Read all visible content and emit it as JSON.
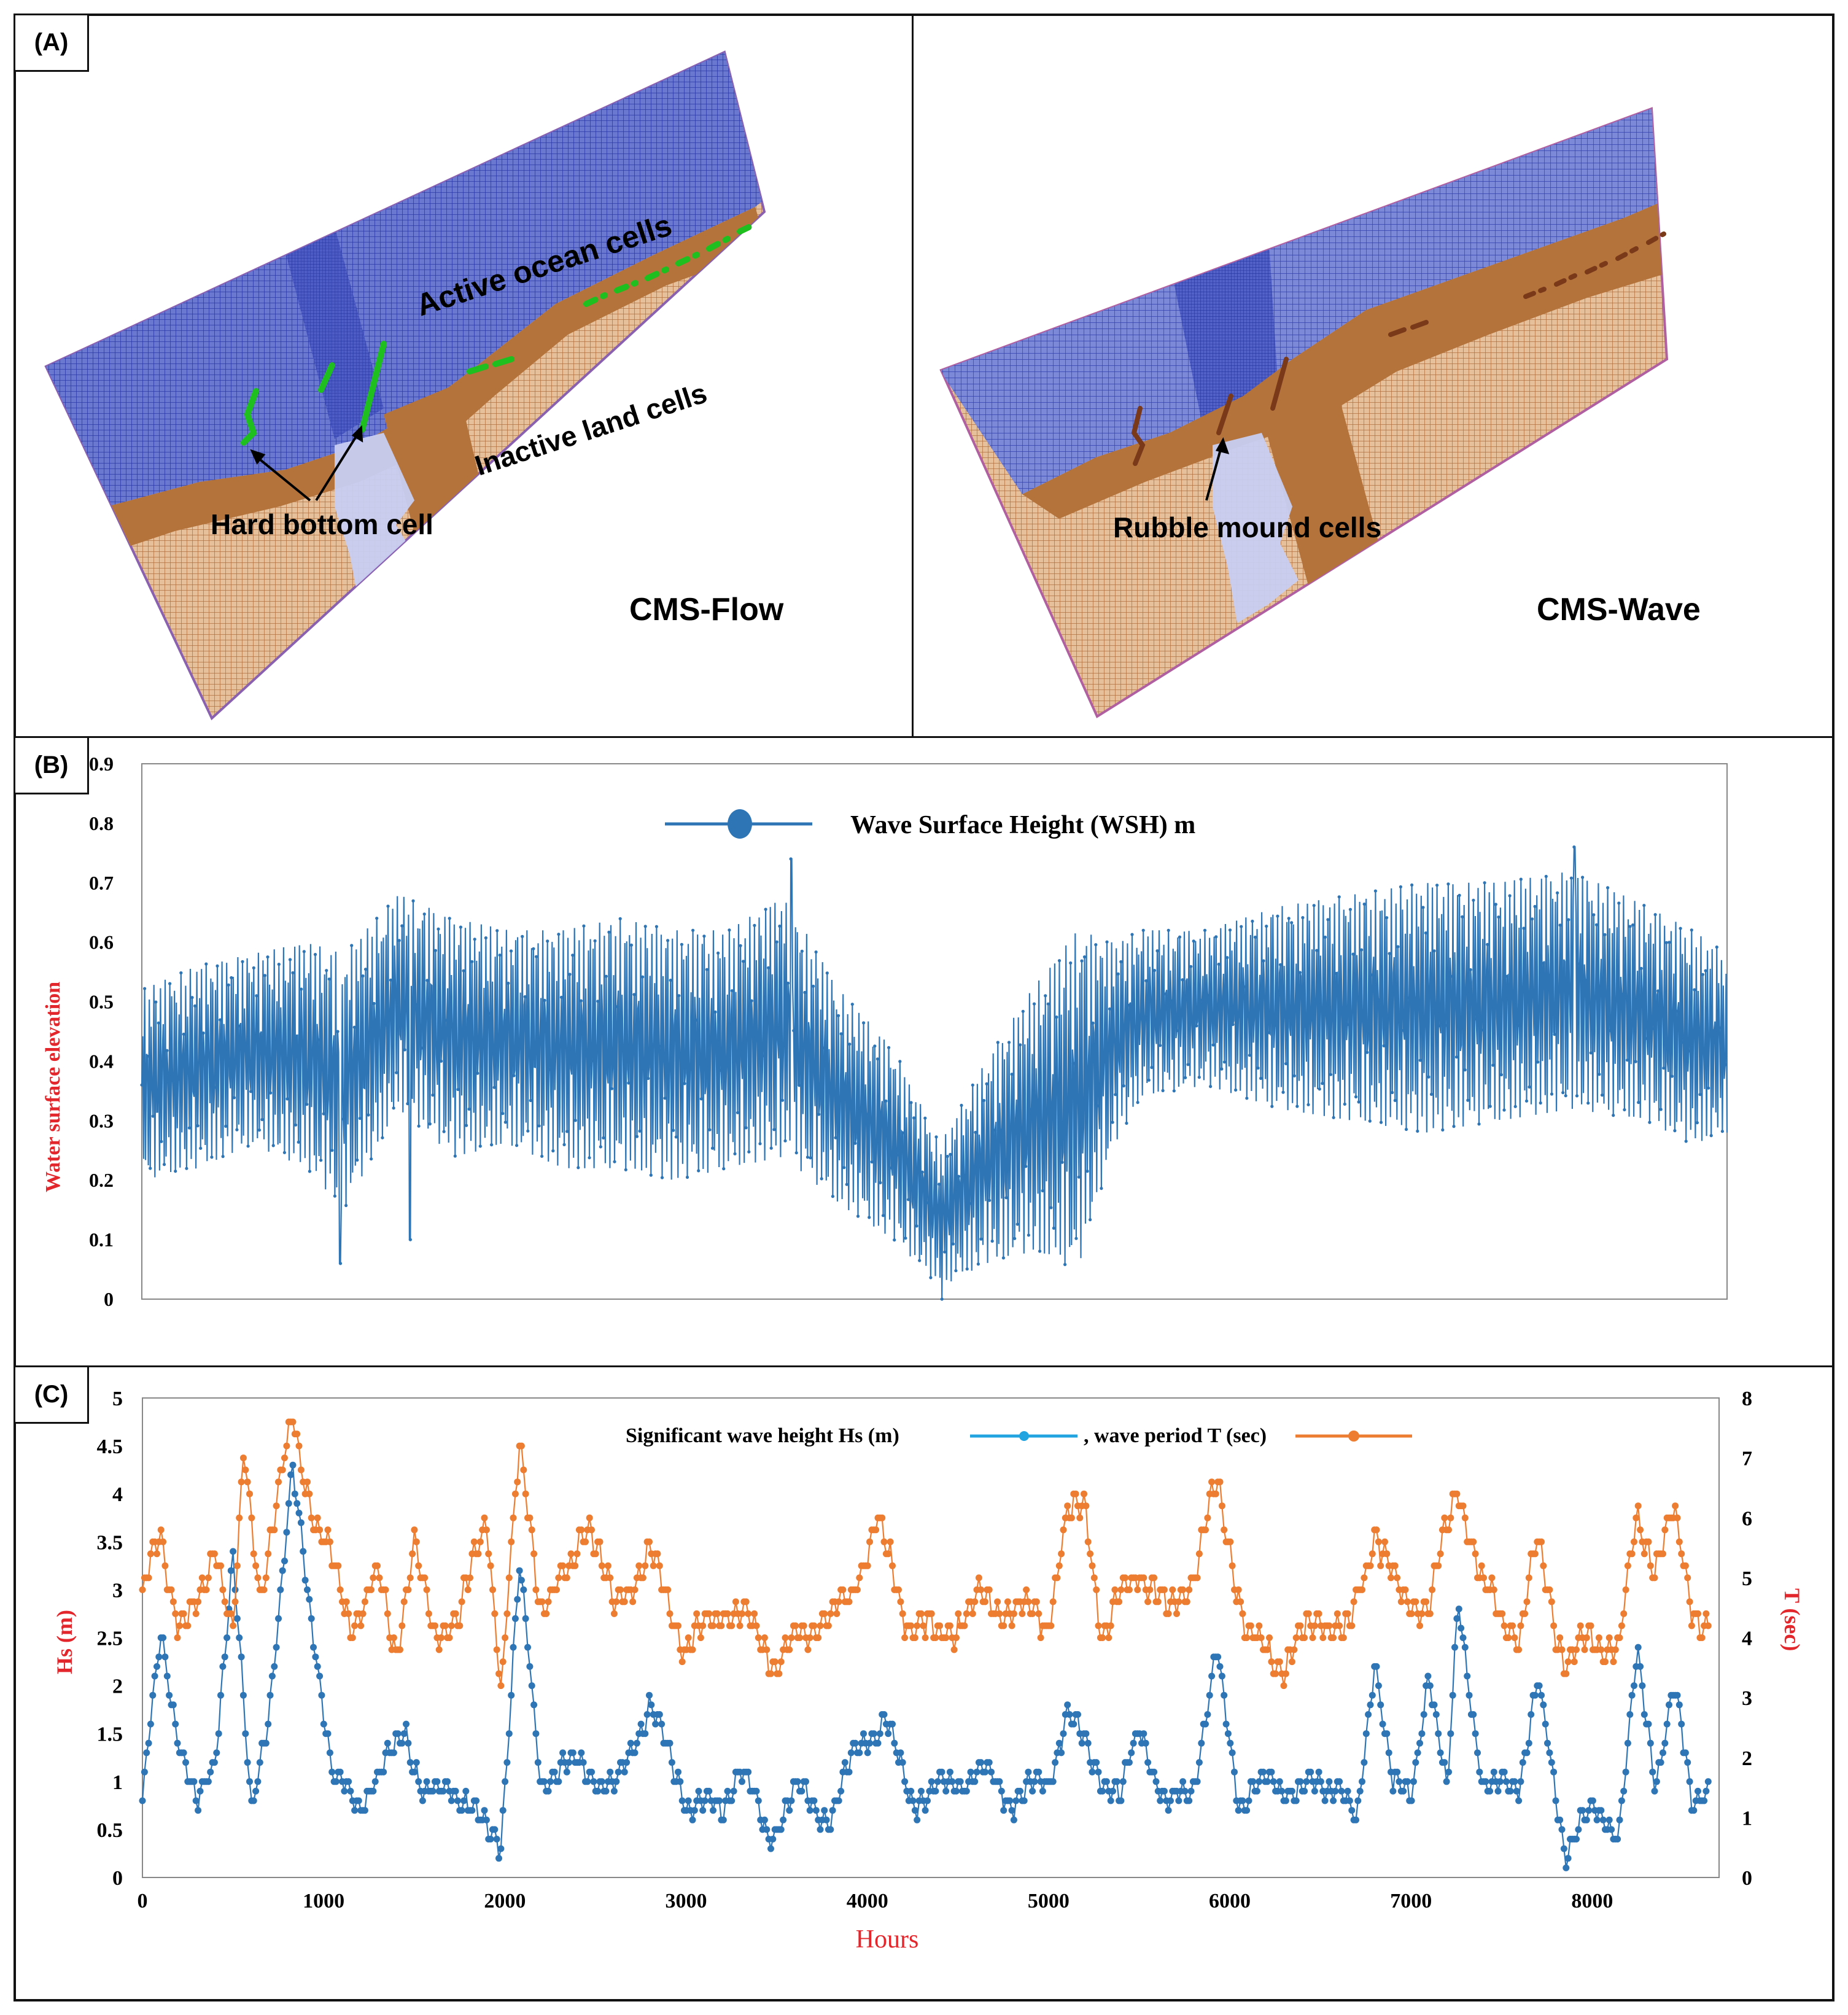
{
  "panel_a": {
    "label": "(A)",
    "left_map": {
      "title": "CMS-Flow",
      "labels": {
        "ocean": "Active ocean cells",
        "land": "Inactive land cells",
        "hard_bottom": "Hard bottom cell"
      }
    },
    "right_map": {
      "title": "CMS-Wave",
      "labels": {
        "rubble": "Rubble mound cells"
      }
    },
    "colors": {
      "ocean": "#3b4fb8",
      "land": "#b0703a",
      "land_mesh": "#d8a878",
      "hard_bottom": "#19c319",
      "rubble": "#7a3a1a"
    }
  },
  "panel_b": {
    "label": "(B)",
    "chart_data": {
      "type": "line",
      "legend": "Wave Surface Height (WSH) m",
      "ylabel": "Water surface elevation",
      "ylim": [
        0,
        0.9
      ],
      "yticks": [
        "0",
        "0.1",
        "0.2",
        "0.3",
        "0.4",
        "0.5",
        "0.6",
        "0.7",
        "0.8",
        "0.9"
      ],
      "xlim": [
        0,
        8640
      ],
      "color": "#2e75b6",
      "envelope": [
        {
          "x": 0,
          "lo": 0.2,
          "hi": 0.52
        },
        {
          "x": 300,
          "lo": 0.22,
          "hi": 0.56
        },
        {
          "x": 600,
          "lo": 0.26,
          "hi": 0.58
        },
        {
          "x": 900,
          "lo": 0.22,
          "hi": 0.6
        },
        {
          "x": 1100,
          "lo": 0.15,
          "hi": 0.58
        },
        {
          "x": 1400,
          "lo": 0.32,
          "hi": 0.68
        },
        {
          "x": 1700,
          "lo": 0.24,
          "hi": 0.64
        },
        {
          "x": 2000,
          "lo": 0.26,
          "hi": 0.62
        },
        {
          "x": 2300,
          "lo": 0.22,
          "hi": 0.62
        },
        {
          "x": 2600,
          "lo": 0.22,
          "hi": 0.64
        },
        {
          "x": 2900,
          "lo": 0.2,
          "hi": 0.62
        },
        {
          "x": 3200,
          "lo": 0.22,
          "hi": 0.62
        },
        {
          "x": 3500,
          "lo": 0.24,
          "hi": 0.68
        },
        {
          "x": 3800,
          "lo": 0.16,
          "hi": 0.52
        },
        {
          "x": 4100,
          "lo": 0.1,
          "hi": 0.42
        },
        {
          "x": 4350,
          "lo": 0.02,
          "hi": 0.26
        },
        {
          "x": 4600,
          "lo": 0.06,
          "hi": 0.4
        },
        {
          "x": 4850,
          "lo": 0.08,
          "hi": 0.52
        },
        {
          "x": 5100,
          "lo": 0.05,
          "hi": 0.62
        },
        {
          "x": 5300,
          "lo": 0.26,
          "hi": 0.6
        },
        {
          "x": 5450,
          "lo": 0.34,
          "hi": 0.62
        },
        {
          "x": 5800,
          "lo": 0.36,
          "hi": 0.62
        },
        {
          "x": 6200,
          "lo": 0.32,
          "hi": 0.66
        },
        {
          "x": 6600,
          "lo": 0.3,
          "hi": 0.68
        },
        {
          "x": 7000,
          "lo": 0.28,
          "hi": 0.7
        },
        {
          "x": 7400,
          "lo": 0.3,
          "hi": 0.7
        },
        {
          "x": 7800,
          "lo": 0.32,
          "hi": 0.72
        },
        {
          "x": 8200,
          "lo": 0.3,
          "hi": 0.66
        },
        {
          "x": 8450,
          "lo": 0.26,
          "hi": 0.62
        },
        {
          "x": 8640,
          "lo": 0.28,
          "hi": 0.58
        }
      ],
      "spikes": [
        {
          "x": 1080,
          "y": 0.06
        },
        {
          "x": 1460,
          "y": 0.1
        },
        {
          "x": 3540,
          "y": 0.74
        },
        {
          "x": 4360,
          "y": 0.0
        },
        {
          "x": 7810,
          "y": 0.76
        }
      ]
    }
  },
  "panel_c": {
    "label": "(C)",
    "chart_data": {
      "type": "line",
      "legend_hs": "Significant wave height Hs (m)",
      "legend_t": ", wave period T (sec)",
      "xlabel": "Hours",
      "ylabel_left": "Hs (m)",
      "ylabel_right": "T (sec)",
      "xlim": [
        0,
        8700
      ],
      "xticks": [
        "0",
        "1000",
        "2000",
        "3000",
        "4000",
        "5000",
        "6000",
        "7000",
        "8000"
      ],
      "ylim_left": [
        0,
        5
      ],
      "yticks_left": [
        "0",
        "0.5",
        "1",
        "1.5",
        "2",
        "2.5",
        "3",
        "3.5",
        "4",
        "4.5",
        "5"
      ],
      "ylim_right": [
        0,
        8
      ],
      "yticks_right": [
        "0",
        "1",
        "2",
        "3",
        "4",
        "5",
        "6",
        "7",
        "8"
      ],
      "series": [
        {
          "name": "Hs",
          "color": "#2e75b6",
          "points": [
            [
              0,
              0.8
            ],
            [
              100,
              2.5
            ],
            [
              200,
              1.5
            ],
            [
              300,
              0.7
            ],
            [
              400,
              1.2
            ],
            [
              500,
              3.4
            ],
            [
              600,
              0.6
            ],
            [
              700,
              1.8
            ],
            [
              830,
              4.2
            ],
            [
              950,
              2.5
            ],
            [
              1050,
              1.0
            ],
            [
              1200,
              0.8
            ],
            [
              1300,
              1.0
            ],
            [
              1450,
              1.6
            ],
            [
              1550,
              0.8
            ],
            [
              1700,
              1.0
            ],
            [
              1850,
              0.6
            ],
            [
              1980,
              0.4
            ],
            [
              2080,
              3.2
            ],
            [
              2200,
              1.0
            ],
            [
              2400,
              1.2
            ],
            [
              2600,
              0.9
            ],
            [
              2800,
              1.8
            ],
            [
              3000,
              0.8
            ],
            [
              3200,
              0.7
            ],
            [
              3300,
              1.2
            ],
            [
              3450,
              0.4
            ],
            [
              3600,
              0.9
            ],
            [
              3800,
              0.6
            ],
            [
              3950,
              1.4
            ],
            [
              4100,
              1.6
            ],
            [
              4250,
              0.8
            ],
            [
              4500,
              1.0
            ],
            [
              4650,
              1.1
            ],
            [
              4800,
              0.8
            ],
            [
              5000,
              1.0
            ],
            [
              5100,
              1.7
            ],
            [
              5250,
              1.2
            ],
            [
              5400,
              0.8
            ],
            [
              5500,
              1.6
            ],
            [
              5650,
              0.7
            ],
            [
              5800,
              1.0
            ],
            [
              5930,
              2.3
            ],
            [
              6050,
              0.8
            ],
            [
              6200,
              1.0
            ],
            [
              6400,
              0.9
            ],
            [
              6600,
              1.0
            ],
            [
              6700,
              0.5
            ],
            [
              6800,
              2.3
            ],
            [
              6900,
              1.0
            ],
            [
              7000,
              0.8
            ],
            [
              7100,
              2.2
            ],
            [
              7200,
              0.8
            ],
            [
              7260,
              2.9
            ],
            [
              7400,
              0.9
            ],
            [
              7600,
              1.0
            ],
            [
              7700,
              2.0
            ],
            [
              7850,
              0.3
            ],
            [
              8000,
              0.7
            ],
            [
              8150,
              0.5
            ],
            [
              8250,
              2.3
            ],
            [
              8350,
              1.0
            ],
            [
              8450,
              2.0
            ],
            [
              8550,
              0.8
            ],
            [
              8640,
              1.0
            ]
          ]
        },
        {
          "name": "T",
          "color": "#ed7d31",
          "points": [
            [
              0,
              4.6
            ],
            [
              100,
              5.8
            ],
            [
              200,
              4.2
            ],
            [
              300,
              4.4
            ],
            [
              400,
              5.6
            ],
            [
              500,
              4.0
            ],
            [
              560,
              7.0
            ],
            [
              650,
              4.8
            ],
            [
              830,
              7.6
            ],
            [
              950,
              6.0
            ],
            [
              1050,
              5.2
            ],
            [
              1150,
              4.2
            ],
            [
              1300,
              5.0
            ],
            [
              1400,
              3.8
            ],
            [
              1500,
              5.6
            ],
            [
              1600,
              4.0
            ],
            [
              1750,
              4.4
            ],
            [
              1900,
              6.0
            ],
            [
              1980,
              3.2
            ],
            [
              2080,
              7.1
            ],
            [
              2200,
              4.6
            ],
            [
              2350,
              5.0
            ],
            [
              2450,
              6.1
            ],
            [
              2600,
              4.5
            ],
            [
              2800,
              5.4
            ],
            [
              3000,
              3.8
            ],
            [
              3200,
              4.5
            ],
            [
              3350,
              4.2
            ],
            [
              3500,
              3.6
            ],
            [
              3700,
              4.2
            ],
            [
              3900,
              4.6
            ],
            [
              4050,
              6.0
            ],
            [
              4200,
              4.4
            ],
            [
              4400,
              4.0
            ],
            [
              4600,
              4.6
            ],
            [
              4800,
              4.5
            ],
            [
              5000,
              4.3
            ],
            [
              5100,
              5.9
            ],
            [
              5200,
              6.3
            ],
            [
              5300,
              4.0
            ],
            [
              5500,
              5.2
            ],
            [
              5650,
              4.4
            ],
            [
              5800,
              5.0
            ],
            [
              5930,
              6.6
            ],
            [
              6100,
              4.0
            ],
            [
              6300,
              3.6
            ],
            [
              6500,
              4.4
            ],
            [
              6650,
              4.0
            ],
            [
              6800,
              5.8
            ],
            [
              6950,
              4.6
            ],
            [
              7100,
              4.5
            ],
            [
              7260,
              6.6
            ],
            [
              7400,
              4.8
            ],
            [
              7600,
              4.0
            ],
            [
              7700,
              5.6
            ],
            [
              7850,
              3.5
            ],
            [
              8000,
              4.0
            ],
            [
              8150,
              3.8
            ],
            [
              8250,
              6.0
            ],
            [
              8350,
              5.2
            ],
            [
              8450,
              6.0
            ],
            [
              8550,
              4.6
            ],
            [
              8640,
              4.1
            ]
          ]
        }
      ]
    }
  }
}
